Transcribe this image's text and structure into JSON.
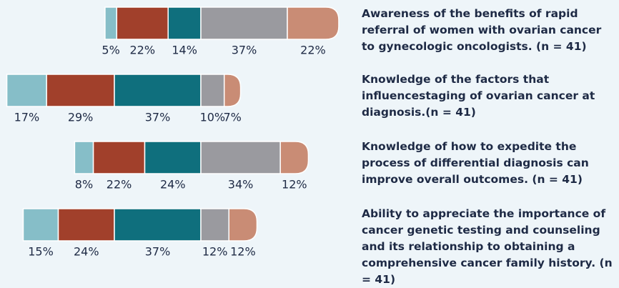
{
  "chart_data": {
    "type": "bar",
    "categories": [
      "Awareness of the benefits of rapid referral of women with ovarian cancer to gynecologic oncologists. (n = 41)",
      "Knowledge of the factors that influencestaging of ovarian cancer at diagnosis.(n = 41)",
      "Knowledge of how to expedite the process of differential diagnosis can improve overall outcomes. (n = 41)",
      "Ability to appreciate the importance of cancer genetic testing and counseling and its relationship to obtaining a comprehensive cancer family history. (n = 41)"
    ],
    "series": [
      {
        "color": "#86bec8",
        "values": [
          5,
          17,
          8,
          15
        ],
        "value_labels": [
          "5%",
          "17%",
          "8%",
          "15%"
        ]
      },
      {
        "color": "#a1402b",
        "values": [
          22,
          29,
          22,
          24
        ],
        "value_labels": [
          "22%",
          "29%",
          "22%",
          "24%"
        ]
      },
      {
        "color": "#0f6f7d",
        "values": [
          14,
          37,
          24,
          37
        ],
        "value_labels": [
          "14%",
          "37%",
          "24%",
          "37%"
        ]
      },
      {
        "color": "#9a9a9f",
        "values": [
          37,
          10,
          34,
          12
        ],
        "value_labels": [
          "37%",
          "10%",
          "34%",
          "12%"
        ]
      },
      {
        "color": "#c98c75",
        "values": [
          22,
          7,
          12,
          12
        ],
        "value_labels": [
          "22%",
          "7%",
          "12%",
          "12%"
        ]
      }
    ]
  }
}
